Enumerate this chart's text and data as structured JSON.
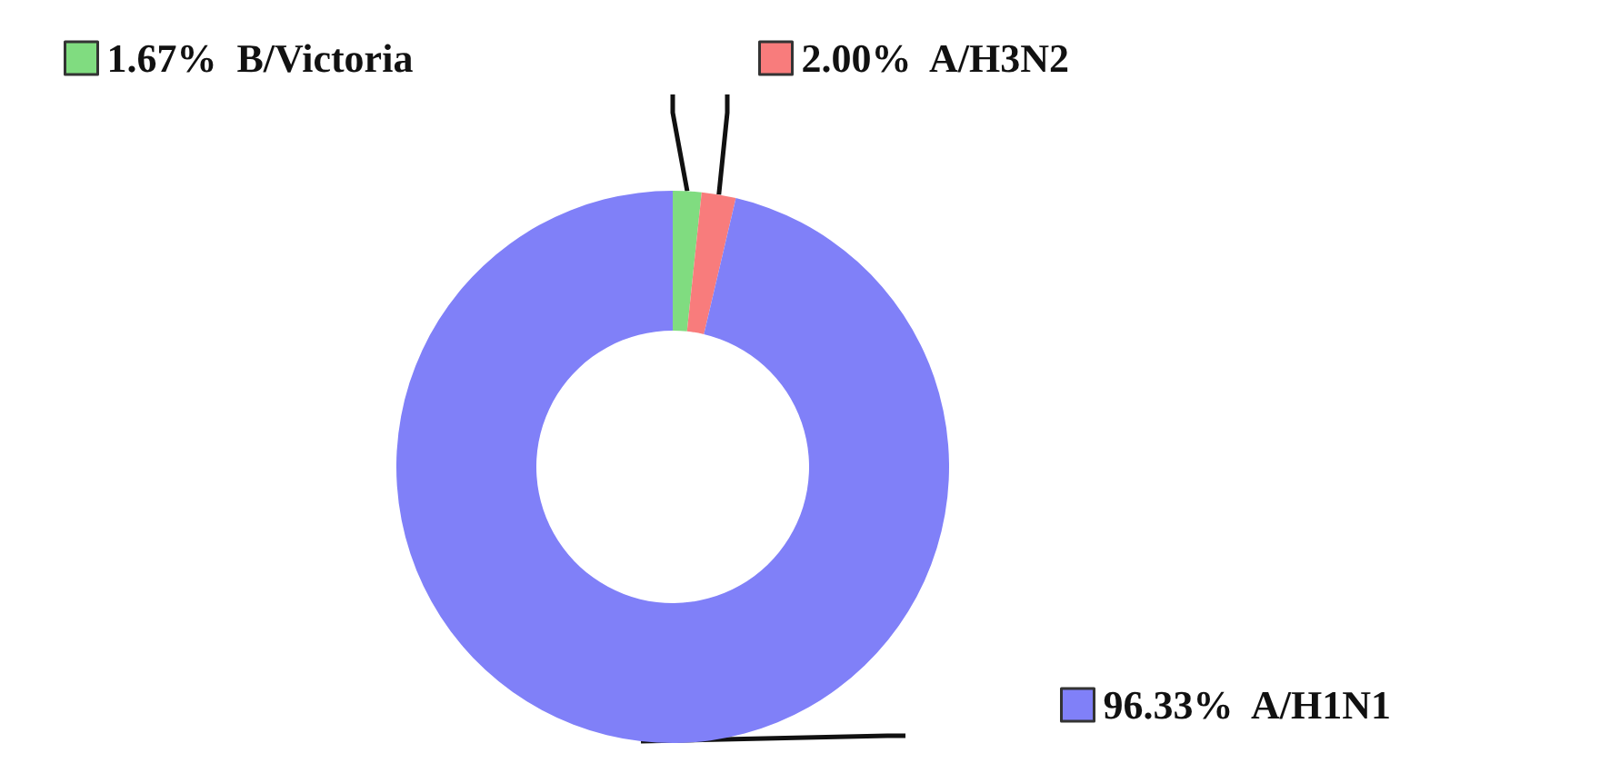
{
  "chart_data": {
    "type": "donut",
    "categories": [
      "B/Victoria",
      "A/H3N2",
      "A/H1N1"
    ],
    "values": [
      1.67,
      2.0,
      96.33
    ],
    "colors": [
      "#80dc80",
      "#f87c7c",
      "#8080f8"
    ],
    "value_labels": [
      "1.67%",
      "2.00%",
      "96.33%"
    ],
    "legend": "top"
  }
}
